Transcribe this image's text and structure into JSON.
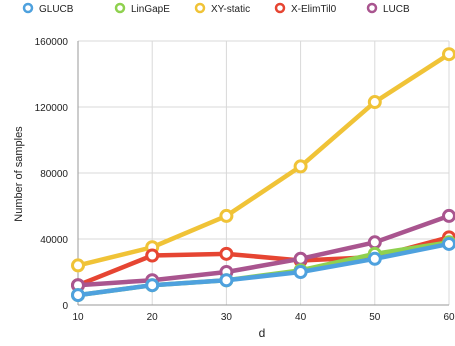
{
  "chart_data": {
    "type": "line",
    "title": "",
    "xlabel": "d",
    "ylabel": "Number of samples",
    "x": [
      10,
      20,
      30,
      40,
      50,
      60
    ],
    "xlim": [
      10,
      60
    ],
    "ylim": [
      0,
      160000
    ],
    "x_ticks": [
      "10",
      "20",
      "30",
      "40",
      "50",
      "60"
    ],
    "y_ticks": [
      {
        "value": 0,
        "label": "0"
      },
      {
        "value": 40000,
        "label": "40000"
      },
      {
        "value": 80000,
        "label": "80000"
      },
      {
        "value": 120000,
        "label": "120000"
      },
      {
        "value": 160000,
        "label": "160000"
      }
    ],
    "grid": true,
    "legend_position": "top",
    "series": [
      {
        "name": "GLUCB",
        "color": "#4ea1de",
        "values": [
          6000,
          12000,
          15000,
          20000,
          28000,
          37000
        ]
      },
      {
        "name": "LinGapE",
        "color": "#8fd14f",
        "values": [
          6000,
          12000,
          15000,
          21000,
          31000,
          38000
        ]
      },
      {
        "name": "XY-static",
        "color": "#f0c337",
        "values": [
          24000,
          35000,
          54000,
          84000,
          123000,
          152000
        ]
      },
      {
        "name": "X-ElimTil0",
        "color": "#e64532",
        "values": [
          12000,
          30000,
          31000,
          27000,
          29000,
          41000
        ]
      },
      {
        "name": "LUCB",
        "color": "#a9558f",
        "values": [
          12000,
          15000,
          20000,
          28000,
          38000,
          54000
        ]
      }
    ],
    "draw_order": [
      2,
      3,
      4,
      1,
      0
    ]
  }
}
